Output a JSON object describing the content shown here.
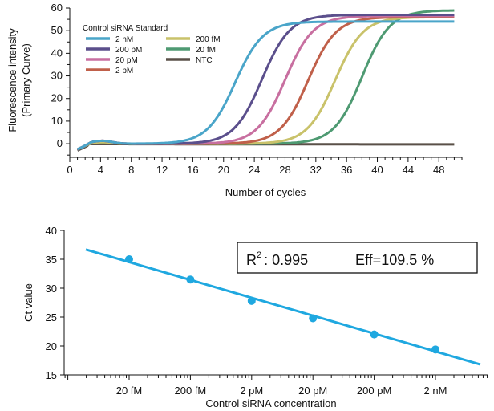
{
  "chart_data": [
    {
      "type": "line",
      "xlabel": "Number of cycles",
      "ylabel": "Fluorescence intensity",
      "ylabel_sub": "(Primary Curve)",
      "xlim": [
        0,
        51
      ],
      "ylim": [
        -6,
        60
      ],
      "xticks": [
        0,
        4,
        8,
        12,
        16,
        20,
        24,
        28,
        32,
        36,
        40,
        44,
        48
      ],
      "yticks": [
        0,
        10,
        20,
        30,
        40,
        50,
        60
      ],
      "grid": false,
      "legend": {
        "title": "Control siRNA Standard",
        "placement": "top-left",
        "entries": [
          "2 nM",
          "200 pM",
          "20 pM",
          "2 pM",
          "200 fM",
          "20 fM",
          "NTC"
        ]
      },
      "series": [
        {
          "name": "2 nM",
          "color": "#4aa5c9",
          "ct": 21.5,
          "plateau": 54.0,
          "k": 0.55
        },
        {
          "name": "200 pM",
          "color": "#5b4f8c",
          "ct": 25.0,
          "plateau": 57.0,
          "k": 0.55
        },
        {
          "name": "20 pM",
          "color": "#c86fa0",
          "ct": 28.0,
          "plateau": 56.5,
          "k": 0.55
        },
        {
          "name": "2 pM",
          "color": "#c0604a",
          "ct": 31.0,
          "plateau": 56.0,
          "k": 0.55
        },
        {
          "name": "200 fM",
          "color": "#c9c26a",
          "ct": 34.5,
          "plateau": 56.0,
          "k": 0.55
        },
        {
          "name": "20 fM",
          "color": "#4e9a72",
          "ct": 38.0,
          "plateau": 59.0,
          "k": 0.55
        },
        {
          "name": "NTC",
          "color": "#5a5048",
          "ct": null,
          "plateau": 0,
          "k": 0
        }
      ]
    },
    {
      "type": "scatter",
      "xlabel": "Control siRNA concentration",
      "ylabel": "Ct value",
      "ylim": [
        15,
        40
      ],
      "yticks": [
        15,
        20,
        25,
        30,
        35,
        40
      ],
      "categories": [
        "20 fM",
        "200 fM",
        "2 pM",
        "20 pM",
        "200 pM",
        "2 nM"
      ],
      "values": [
        35.0,
        31.5,
        27.8,
        24.8,
        22.0,
        19.4
      ],
      "fit": {
        "y_start": 36.7,
        "y_end": 16.8
      },
      "color": "#1fa8e0",
      "annotation": {
        "r2_label": "R",
        "r2_sup": "2",
        "r2_value": ": 0.995",
        "eff": "Eff=109.5 %"
      }
    }
  ]
}
